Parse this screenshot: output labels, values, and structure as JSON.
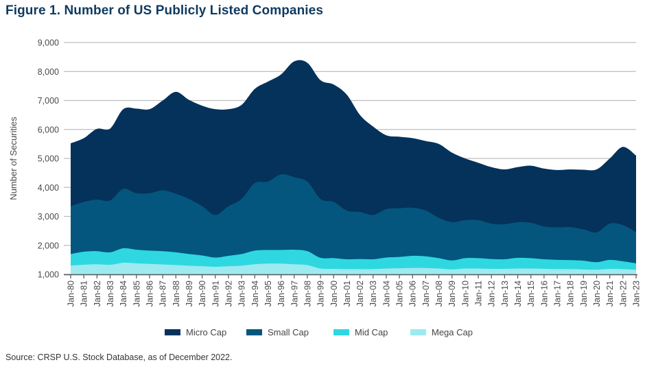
{
  "title": "Figure 1. Number of US Publicly Listed Companies",
  "source": "Source: CRSP U.S. Stock Database, as of December 2022.",
  "colors": {
    "title": "#0f3a5f",
    "micro": "#05325a",
    "small": "#04567e",
    "mid": "#2fd8e0",
    "mega": "#9deaf0"
  },
  "chart_data": {
    "type": "area",
    "stacked": true,
    "title": "Figure 1. Number of US Publicly Listed Companies",
    "xlabel": "",
    "ylabel": "Number of Securities",
    "ylim": [
      1000,
      9000
    ],
    "yticks": [
      1000,
      2000,
      3000,
      4000,
      5000,
      6000,
      7000,
      8000,
      9000
    ],
    "ytick_labels": [
      "1,000",
      "2,000",
      "3,000",
      "4,000",
      "5,000",
      "6,000",
      "7,000",
      "8,000",
      "9,000"
    ],
    "grid": "horizontal",
    "legend_position": "bottom",
    "value_note": "values are cumulative stacked tops (number of securities) read off the y-axis",
    "categories": [
      "Jan-80",
      "Jan-81",
      "Jan-82",
      "Jan-83",
      "Jan-84",
      "Jan-85",
      "Jan-86",
      "Jan-87",
      "Jan-88",
      "Jan-89",
      "Jan-90",
      "Jan-91",
      "Jan-92",
      "Jan-93",
      "Jan-94",
      "Jan-95",
      "Jan-96",
      "Jan-97",
      "Jan-98",
      "Jan-99",
      "Jan-00",
      "Jan-01",
      "Jan-02",
      "Jan-03",
      "Jan-04",
      "Jan-05",
      "Jan-06",
      "Jan-07",
      "Jan-08",
      "Jan-09",
      "Jan-10",
      "Jan-11",
      "Jan-12",
      "Jan-13",
      "Jan-14",
      "Jan-15",
      "Jan-16",
      "Jan-17",
      "Jan-18",
      "Jan-19",
      "Jan-20",
      "Jan-21",
      "Jan-22",
      "Jan-23"
    ],
    "series": [
      {
        "name": "Micro Cap",
        "color_key": "micro",
        "cumulative_top": [
          5520,
          5700,
          6020,
          6030,
          6700,
          6720,
          6700,
          7000,
          7300,
          7020,
          6820,
          6700,
          6700,
          6850,
          7400,
          7650,
          7900,
          8350,
          8300,
          7700,
          7550,
          7200,
          6500,
          6100,
          5800,
          5750,
          5700,
          5600,
          5500,
          5200,
          5000,
          4850,
          4700,
          4620,
          4700,
          4750,
          4650,
          4600,
          4620,
          4610,
          4620,
          5000,
          5400,
          5100
        ]
      },
      {
        "name": "Small Cap",
        "color_key": "small",
        "cumulative_top": [
          3350,
          3500,
          3580,
          3550,
          3950,
          3800,
          3800,
          3900,
          3780,
          3600,
          3350,
          3050,
          3350,
          3600,
          4150,
          4200,
          4450,
          4350,
          4200,
          3600,
          3500,
          3200,
          3150,
          3050,
          3250,
          3280,
          3300,
          3200,
          2950,
          2800,
          2870,
          2870,
          2750,
          2730,
          2800,
          2780,
          2650,
          2620,
          2630,
          2550,
          2450,
          2750,
          2700,
          2450
        ]
      },
      {
        "name": "Mid Cap",
        "color_key": "mid",
        "cumulative_top": [
          1700,
          1780,
          1800,
          1760,
          1900,
          1850,
          1820,
          1800,
          1760,
          1700,
          1650,
          1580,
          1640,
          1700,
          1820,
          1840,
          1840,
          1850,
          1800,
          1570,
          1560,
          1520,
          1530,
          1520,
          1580,
          1600,
          1640,
          1620,
          1560,
          1480,
          1560,
          1560,
          1530,
          1520,
          1570,
          1560,
          1520,
          1500,
          1490,
          1470,
          1420,
          1500,
          1450,
          1380
        ]
      },
      {
        "name": "Mega Cap",
        "color_key": "mega",
        "cumulative_top": [
          1300,
          1330,
          1350,
          1330,
          1400,
          1380,
          1360,
          1340,
          1320,
          1300,
          1280,
          1260,
          1280,
          1300,
          1350,
          1370,
          1370,
          1350,
          1320,
          1200,
          1190,
          1180,
          1180,
          1180,
          1200,
          1210,
          1220,
          1220,
          1200,
          1170,
          1200,
          1200,
          1190,
          1190,
          1200,
          1200,
          1190,
          1180,
          1180,
          1170,
          1160,
          1190,
          1180,
          1160
        ]
      }
    ]
  }
}
